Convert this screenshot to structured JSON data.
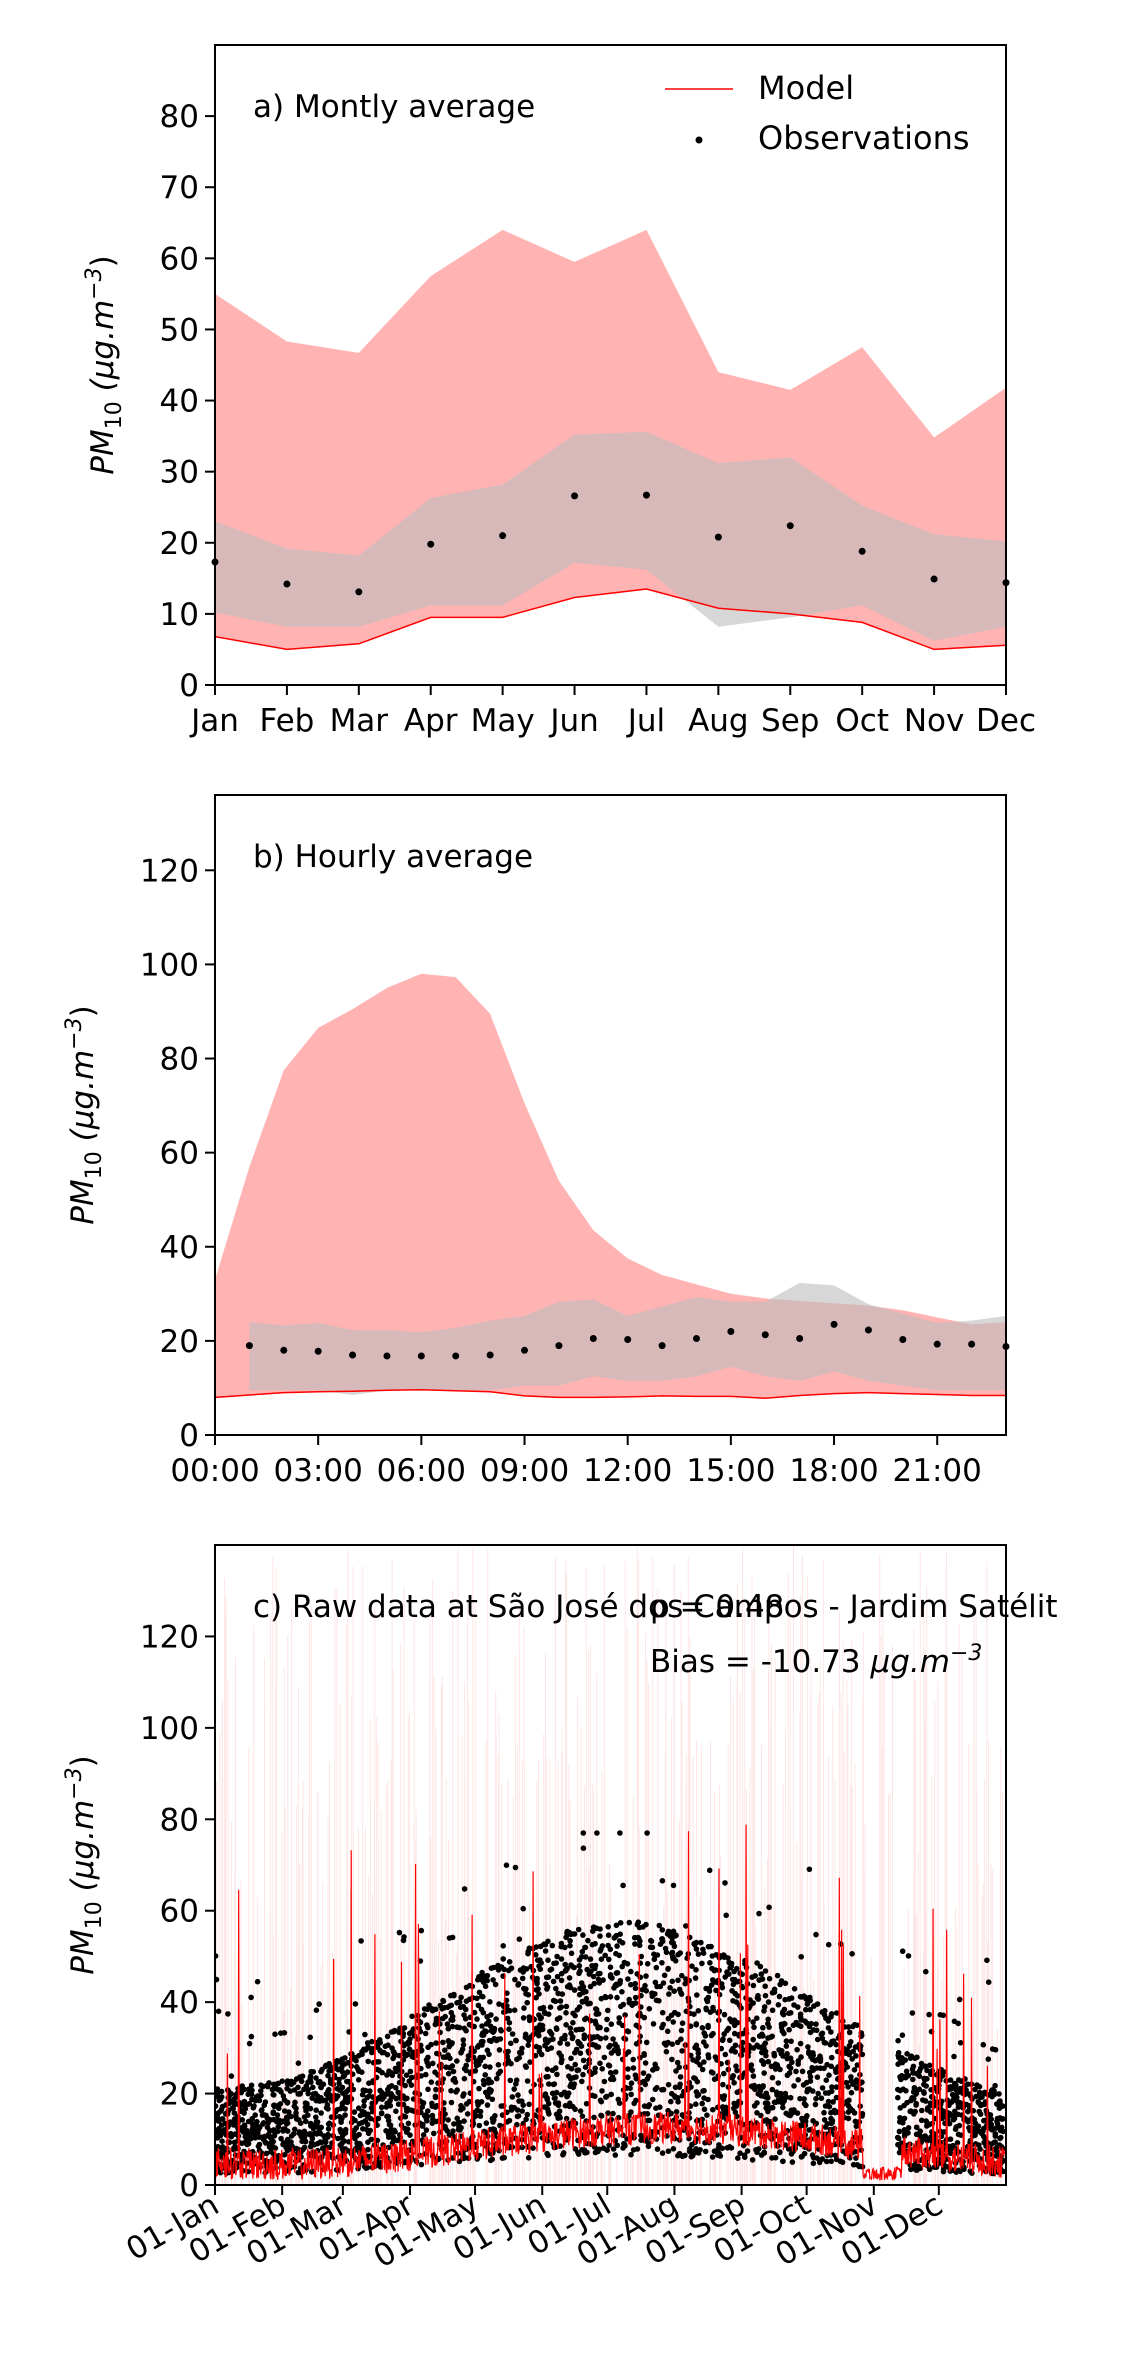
{
  "chart_data": [
    {
      "type": "area",
      "title": "a) Montly average",
      "ylabel": "PM10 (μg.m-3)",
      "ylabel_parts": {
        "base": "PM",
        "sub": "10",
        "unit": " (μg.m",
        "sup": "−3",
        "close": ")"
      },
      "ylim": [
        0,
        90
      ],
      "yticks": [
        0,
        10,
        20,
        30,
        40,
        50,
        60,
        70,
        80
      ],
      "categories": [
        "Jan",
        "Feb",
        "Mar",
        "Apr",
        "May",
        "Jun",
        "Jul",
        "Aug",
        "Sep",
        "Oct",
        "Nov",
        "Dec"
      ],
      "legend": {
        "placement": "top-right",
        "entries": [
          "Model",
          "Observations"
        ]
      },
      "series": [
        {
          "name": "Model",
          "kind": "band",
          "color": "#ff0000",
          "fill": "#ffb3b3",
          "upper": [
            55,
            48.3,
            46.7,
            57.5,
            64,
            59.5,
            64,
            44,
            41.5,
            47.5,
            34.8,
            41.8
          ],
          "lower": [
            6.8,
            5.0,
            5.8,
            9.5,
            9.5,
            12.3,
            13.5,
            10.8,
            10.0,
            8.8,
            5.0,
            5.6
          ]
        },
        {
          "name": "Observations",
          "kind": "band",
          "fill": "#bdbdbd",
          "upper": [
            23,
            19.2,
            18.2,
            26.3,
            28.2,
            35.2,
            35.6,
            31.2,
            32.0,
            25.2,
            21.2,
            20.2
          ],
          "lower": [
            10.2,
            8.2,
            8.2,
            11.2,
            11.2,
            17.2,
            16.2,
            8.2,
            9.5,
            11.2,
            6.2,
            8.2
          ],
          "points": [
            17.3,
            14.2,
            13.1,
            19.8,
            21.0,
            26.6,
            26.7,
            20.8,
            22.4,
            18.8,
            14.9,
            14.4
          ]
        }
      ]
    },
    {
      "type": "area",
      "title": "b) Hourly average",
      "ylabel": "PM10 (μg.m-3)",
      "ylabel_parts": {
        "base": "PM",
        "sub": "10",
        "unit": " (μg.m",
        "sup": "−3",
        "close": ")"
      },
      "ylim": [
        0,
        136
      ],
      "yticks": [
        0,
        20,
        40,
        60,
        80,
        100,
        120
      ],
      "x": [
        0,
        1,
        2,
        3,
        4,
        5,
        6,
        7,
        8,
        9,
        10,
        11,
        12,
        13,
        14,
        15,
        16,
        17,
        18,
        19,
        20,
        21,
        22,
        23
      ],
      "xticks": [
        "00:00",
        "03:00",
        "06:00",
        "09:00",
        "12:00",
        "15:00",
        "18:00",
        "21:00"
      ],
      "series": [
        {
          "name": "Model",
          "kind": "band",
          "color": "#ff0000",
          "fill": "#ffb3b3",
          "upper": [
            33,
            57,
            77.5,
            86.5,
            90.5,
            95,
            98,
            97.3,
            89.5,
            70.5,
            54,
            43.5,
            37.5,
            34,
            32,
            30,
            29,
            28.5,
            28,
            27.5,
            26.5,
            25,
            23.5,
            24
          ],
          "lower": [
            8,
            8.5,
            9,
            9.2,
            9.3,
            9.5,
            9.6,
            9.4,
            9.2,
            8.3,
            8.0,
            8.0,
            8.1,
            8.3,
            8.2,
            8.2,
            7.8,
            8.4,
            8.8,
            9.0,
            8.8,
            8.6,
            8.4,
            8.4
          ]
        },
        {
          "name": "Observations",
          "kind": "band",
          "fill": "#bdbdbd",
          "x": [
            1,
            2,
            3,
            4,
            5,
            6,
            7,
            8,
            9,
            10,
            11,
            12,
            13,
            14,
            15,
            16,
            17,
            18,
            19,
            20,
            21,
            22,
            23
          ],
          "upper": [
            24,
            23.3,
            23.8,
            22.3,
            22.3,
            21.8,
            22.8,
            24.3,
            25.3,
            28.3,
            28.8,
            25.3,
            27.3,
            29.3,
            28.3,
            28.3,
            32.3,
            31.8,
            27.8,
            25.8,
            23.8,
            24.3,
            25.3
          ],
          "lower": [
            9.5,
            9.5,
            9.5,
            8.5,
            9.5,
            9.5,
            9.5,
            9.5,
            10.5,
            10.5,
            12.5,
            11.5,
            11.5,
            12.5,
            14.5,
            12.5,
            11.5,
            13.5,
            11.5,
            10.5,
            9.5,
            9.5,
            9.5
          ],
          "points": [
            19,
            18,
            17.8,
            17,
            16.8,
            16.8,
            16.8,
            17,
            18,
            19,
            20.5,
            20.3,
            19,
            20.5,
            22,
            21.3,
            20.5,
            23.5,
            22.3,
            20.3,
            19.3,
            19.3,
            18.8
          ]
        }
      ]
    },
    {
      "type": "line",
      "title": "c) Raw data at São José dos Campos - Jardim Satélit",
      "annotations": [
        "ρ = 0.48",
        "Bias = -10.73 μg.m-3"
      ],
      "annotation_parts": {
        "rho": "ρ = 0.48",
        "bias": "Bias = -10.73 ",
        "unit": "μg.m",
        "sup": "−3"
      },
      "ylabel": "PM10 (μg.m-3)",
      "ylabel_parts": {
        "base": "PM",
        "sub": "10",
        "unit": " (μg.m",
        "sup": "−3",
        "close": ")"
      },
      "ylim": [
        0,
        140
      ],
      "yticks": [
        0,
        20,
        40,
        60,
        80,
        100,
        120
      ],
      "xticks": [
        "01-Jan",
        "01-Feb",
        "01-Mar",
        "01-Apr",
        "01-May",
        "01-Jun",
        "01-Jul",
        "01-Aug",
        "01-Sep",
        "01-Oct",
        "01-Nov",
        "01-Dec"
      ],
      "xtick_days": [
        1,
        32,
        60,
        91,
        121,
        152,
        182,
        213,
        244,
        274,
        305,
        335
      ],
      "xlim_days": [
        1,
        366
      ],
      "series": [
        {
          "name": "Model",
          "kind": "line",
          "color": "#ff0000",
          "note": "hourly model values, typically 2–25, peaks up to about 95"
        },
        {
          "name": "Observations",
          "kind": "scatter",
          "color": "#000000",
          "note": "hourly observations, mostly 5–50, peaks up to about 77"
        }
      ]
    }
  ]
}
